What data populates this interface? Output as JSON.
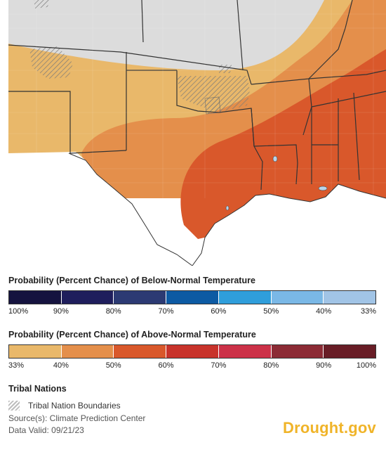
{
  "map": {
    "colors": {
      "background_land": "#dcdcdc",
      "above_33": "#e9b86a",
      "above_40": "#e48f4b",
      "above_50": "#d9582b",
      "borders": "#333333",
      "counties": "#9a9a9a",
      "water": "#b9d3e8"
    }
  },
  "legend_below": {
    "title": "Probability (Percent Chance) of Below-Normal Temperature",
    "colors": [
      "#15133f",
      "#1f1e5c",
      "#2c3a73",
      "#0d5aa3",
      "#2f9edb",
      "#7ab8e6",
      "#a1c4e6"
    ],
    "ticks": [
      "100%",
      "90%",
      "80%",
      "70%",
      "60%",
      "50%",
      "40%",
      "33%"
    ]
  },
  "legend_above": {
    "title": "Probability (Percent Chance) of Above-Normal Temperature",
    "colors": [
      "#e9b86a",
      "#e48f4b",
      "#d9582b",
      "#c8332b",
      "#cc3148",
      "#8c2b35",
      "#681d26"
    ],
    "ticks": [
      "33%",
      "40%",
      "50%",
      "60%",
      "70%",
      "80%",
      "90%",
      "100%"
    ]
  },
  "tribal": {
    "heading": "Tribal Nations",
    "label": "Tribal Nation Boundaries"
  },
  "footer": {
    "source": "Source(s): Climate Prediction Center",
    "valid": "Data Valid: 09/21/23",
    "logo": "Drought.gov"
  }
}
